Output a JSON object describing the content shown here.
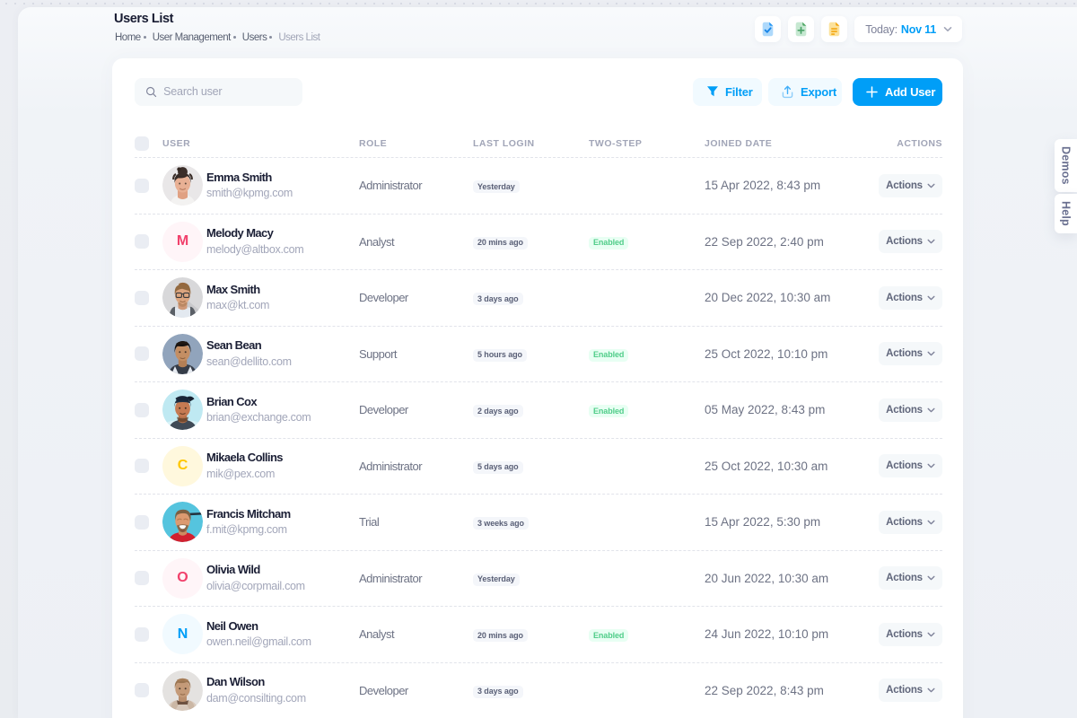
{
  "page": {
    "title": "Users List",
    "breadcrumb": [
      "Home",
      "User Management",
      "Users",
      "Users List"
    ]
  },
  "topbar": {
    "icon_buttons": [
      {
        "name": "file-check-icon",
        "color": "#2a99f4"
      },
      {
        "name": "file-plus-icon",
        "color": "#50a766"
      },
      {
        "name": "file-lines-icon",
        "color": "#f3a712"
      }
    ],
    "date_button": {
      "label": "Today:",
      "value": "Nov 11"
    }
  },
  "toolbar": {
    "search_placeholder": "Search user",
    "filter_label": "Filter",
    "export_label": "Export",
    "add_user_label": "Add User"
  },
  "table": {
    "headers": [
      "USER",
      "ROLE",
      "LAST LOGIN",
      "TWO-STEP",
      "JOINED DATE",
      "ACTIONS"
    ],
    "actions_label": "Actions",
    "rows": [
      {
        "name": "Emma Smith",
        "email": "smith@kpmg.com",
        "role": "Administrator",
        "last_login": "Yesterday",
        "two_step": "",
        "joined": "15 Apr 2022, 8:43 pm",
        "avatar": {
          "type": "photo",
          "photo": "emma"
        }
      },
      {
        "name": "Melody Macy",
        "email": "melody@altbox.com",
        "role": "Analyst",
        "last_login": "20 mins ago",
        "two_step": "Enabled",
        "joined": "22 Sep 2022, 2:40 pm",
        "avatar": {
          "type": "initial",
          "initial": "M",
          "fg": "#f1416c",
          "bg": "#fff5f8"
        }
      },
      {
        "name": "Max Smith",
        "email": "max@kt.com",
        "role": "Developer",
        "last_login": "3 days ago",
        "two_step": "",
        "joined": "20 Dec 2022, 10:30 am",
        "avatar": {
          "type": "photo",
          "photo": "max"
        }
      },
      {
        "name": "Sean Bean",
        "email": "sean@dellito.com",
        "role": "Support",
        "last_login": "5 hours ago",
        "two_step": "Enabled",
        "joined": "25 Oct 2022, 10:10 pm",
        "avatar": {
          "type": "photo",
          "photo": "sean"
        }
      },
      {
        "name": "Brian Cox",
        "email": "brian@exchange.com",
        "role": "Developer",
        "last_login": "2 days ago",
        "two_step": "Enabled",
        "joined": "05 May 2022, 8:43 pm",
        "avatar": {
          "type": "photo",
          "photo": "brian"
        }
      },
      {
        "name": "Mikaela Collins",
        "email": "mik@pex.com",
        "role": "Administrator",
        "last_login": "5 days ago",
        "two_step": "",
        "joined": "25 Oct 2022, 10:30 am",
        "avatar": {
          "type": "initial",
          "initial": "C",
          "fg": "#ffc700",
          "bg": "#fff8dd"
        }
      },
      {
        "name": "Francis Mitcham",
        "email": "f.mit@kpmg.com",
        "role": "Trial",
        "last_login": "3 weeks ago",
        "two_step": "",
        "joined": "15 Apr 2022, 5:30 pm",
        "avatar": {
          "type": "photo",
          "photo": "francis"
        }
      },
      {
        "name": "Olivia Wild",
        "email": "olivia@corpmail.com",
        "role": "Administrator",
        "last_login": "Yesterday",
        "two_step": "",
        "joined": "20 Jun 2022, 10:30 am",
        "avatar": {
          "type": "initial",
          "initial": "O",
          "fg": "#f1416c",
          "bg": "#fff5f8"
        }
      },
      {
        "name": "Neil Owen",
        "email": "owen.neil@gmail.com",
        "role": "Analyst",
        "last_login": "20 mins ago",
        "two_step": "Enabled",
        "joined": "24 Jun 2022, 10:10 pm",
        "avatar": {
          "type": "initial",
          "initial": "N",
          "fg": "#009ef7",
          "bg": "#f1faff"
        }
      },
      {
        "name": "Dan Wilson",
        "email": "dam@consilting.com",
        "role": "Developer",
        "last_login": "3 days ago",
        "two_step": "",
        "joined": "22 Sep 2022, 8:43 pm",
        "avatar": {
          "type": "photo",
          "photo": "dan"
        }
      }
    ]
  },
  "side_tabs": [
    {
      "label": "Demos"
    },
    {
      "label": "Help"
    }
  ],
  "colors": {
    "primary": "#009ef7",
    "light_primary": "#f1faff",
    "success": "#50cd89",
    "light_success": "#e8fff3"
  }
}
